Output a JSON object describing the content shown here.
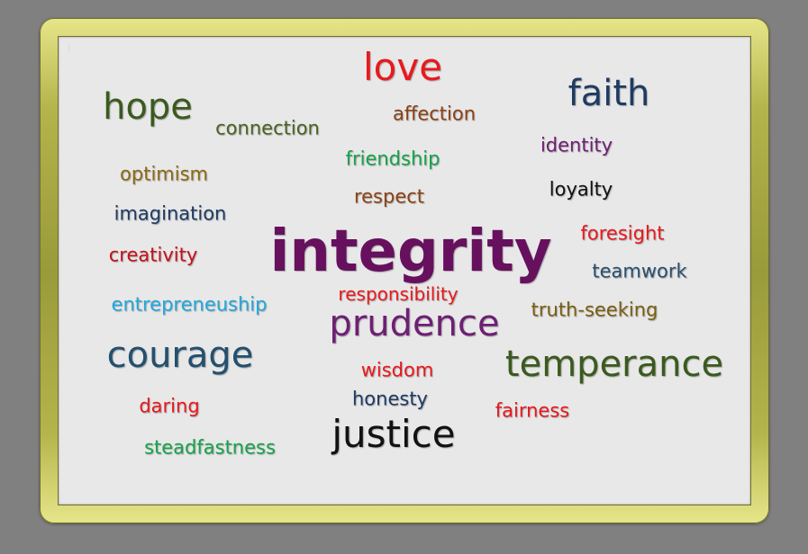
{
  "cloud": {
    "words": [
      {
        "text": "love",
        "color": "#e8191d"
      },
      {
        "text": "hope",
        "color": "#3b5a1e"
      },
      {
        "text": "faith",
        "color": "#1f3b63"
      },
      {
        "text": "connection",
        "color": "#4a6224"
      },
      {
        "text": "affection",
        "color": "#8a4216"
      },
      {
        "text": "identity",
        "color": "#6e1f74"
      },
      {
        "text": "friendship",
        "color": "#17a34a"
      },
      {
        "text": "optimism",
        "color": "#8a6a15"
      },
      {
        "text": "respect",
        "color": "#8a4216"
      },
      {
        "text": "loyalty",
        "color": "#111111"
      },
      {
        "text": "imagination",
        "color": "#1f3b63"
      },
      {
        "text": "integrity",
        "color": "#66105e"
      },
      {
        "text": "foresight",
        "color": "#e8191d"
      },
      {
        "text": "creativity",
        "color": "#c5111a"
      },
      {
        "text": "teamwork",
        "color": "#2a4f6d"
      },
      {
        "text": "responsibility",
        "color": "#e8191d"
      },
      {
        "text": "entrepreneuship",
        "color": "#22a8de"
      },
      {
        "text": "prudence",
        "color": "#6e1f74"
      },
      {
        "text": "truth-seeking",
        "color": "#7a5f12"
      },
      {
        "text": "courage",
        "color": "#23506e"
      },
      {
        "text": "temperance",
        "color": "#3b5a1e"
      },
      {
        "text": "wisdom",
        "color": "#e8191d"
      },
      {
        "text": "honesty",
        "color": "#1f3b63"
      },
      {
        "text": "daring",
        "color": "#e8191d"
      },
      {
        "text": "fairness",
        "color": "#e8191d"
      },
      {
        "text": "justice",
        "color": "#111111"
      },
      {
        "text": "steadfastness",
        "color": "#17a34a"
      }
    ]
  }
}
